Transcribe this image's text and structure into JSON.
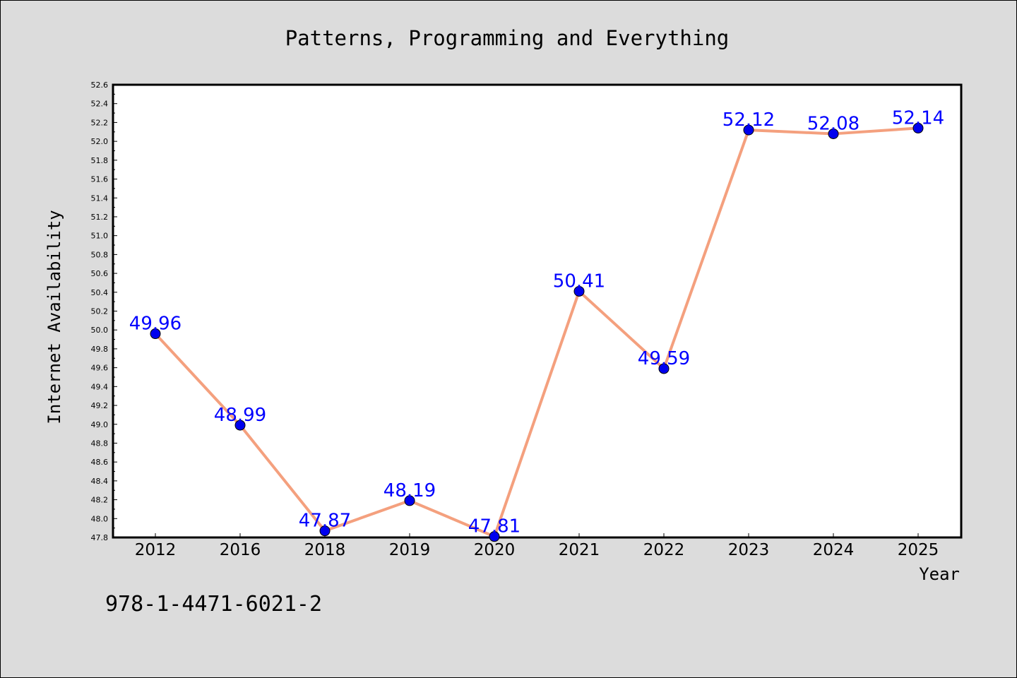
{
  "chart_data": {
    "type": "line",
    "title": "Patterns, Programming and Everything",
    "xlabel": "Year",
    "ylabel": "Internet Availability",
    "categories": [
      "2012",
      "2016",
      "2018",
      "2019",
      "2020",
      "2021",
      "2022",
      "2023",
      "2024",
      "2025"
    ],
    "values": [
      49.96,
      48.99,
      47.87,
      48.19,
      47.81,
      50.41,
      49.59,
      52.12,
      52.08,
      52.14
    ],
    "data_labels": [
      "49.96",
      "48.99",
      "47.87",
      "48.19",
      "47.81",
      "50.41",
      "49.59",
      "52.12",
      "52.08",
      "52.14"
    ],
    "ylim": [
      47.8,
      52.6
    ],
    "yticks": [
      "47.8",
      "48.0",
      "48.2",
      "48.4",
      "48.6",
      "48.8",
      "49.0",
      "49.2",
      "49.4",
      "49.6",
      "49.8",
      "50.0",
      "50.2",
      "50.4",
      "50.6",
      "50.8",
      "51.0",
      "51.2",
      "51.4",
      "51.6",
      "51.8",
      "52.0",
      "52.2",
      "52.4",
      "52.6"
    ],
    "grid": false,
    "line_color": "#f4a07e",
    "marker_color": "#0000ee",
    "label_color": "#0000ff"
  },
  "footer_text": "978-1-4471-6021-2"
}
